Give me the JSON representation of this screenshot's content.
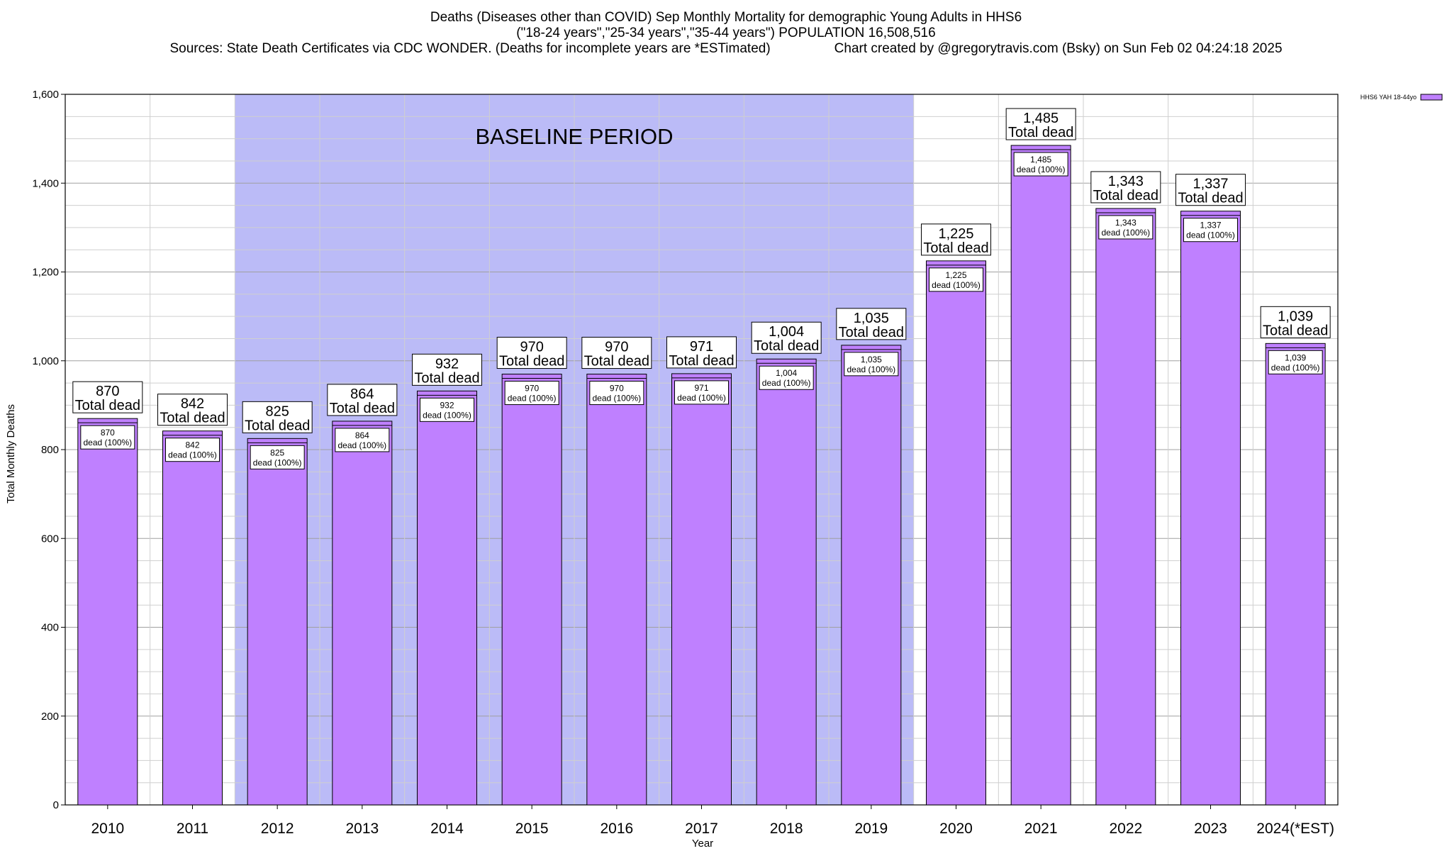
{
  "header": {
    "title_line1": "Deaths (Diseases other than COVID) Sep Monthly Mortality for demographic Young Adults in HHS6",
    "title_line2": "(\"18-24 years\",\"25-34 years\",\"35-44 years\") POPULATION 16,508,516",
    "sources": "Sources: State Death Certificates via CDC WONDER. (Deaths for incomplete years are *ESTimated)",
    "credit": "Chart created by @gregorytravis.com (Bsky) on Sun Feb 02 04:24:18 2025"
  },
  "chart_data": {
    "type": "bar",
    "xlabel": "Year",
    "ylabel": "Total Monthly Deaths",
    "ylim": [
      0,
      1600
    ],
    "yticks": [
      0,
      200,
      400,
      600,
      800,
      1000,
      1200,
      1400,
      1600
    ],
    "grid": true,
    "legend": {
      "position": "top-right",
      "label": "HHS6 YAH 18-44yo"
    },
    "categories": [
      "2010",
      "2011",
      "2012",
      "2013",
      "2014",
      "2015",
      "2016",
      "2017",
      "2018",
      "2019",
      "2020",
      "2021",
      "2022",
      "2023",
      "2024(*EST)"
    ],
    "series": [
      {
        "name": "HHS6 YAH 18-44yo",
        "values": [
          870,
          842,
          825,
          864,
          932,
          970,
          970,
          971,
          1004,
          1035,
          1225,
          1485,
          1343,
          1337,
          1039
        ]
      }
    ],
    "top_label_suffix": "Total dead",
    "inner_label_suffix": "dead (100%)",
    "baseline_period": {
      "label": "BASELINE PERIOD",
      "from": "2012",
      "to": "2019"
    },
    "colors": {
      "bar": "#bf80ff",
      "baseline": "#bbbbf7",
      "grid": "#b0b0b0"
    }
  }
}
